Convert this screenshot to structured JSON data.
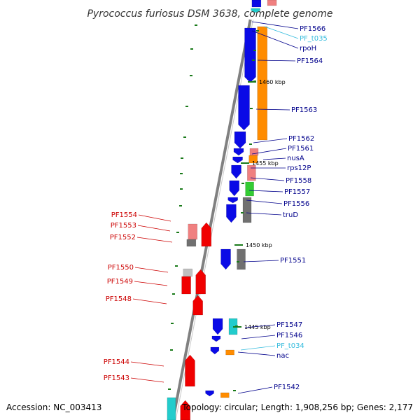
{
  "title": "Pyrococcus furiosus DSM 3638, complete genome",
  "footer": {
    "accession": "Accession: NC_003413",
    "summary": "Topology: circular; Length: 1,908,256 bp; Genes: 2,177"
  },
  "colors": {
    "blue": "#0a0ae6",
    "red": "#f00000",
    "orange": "#ff8c00",
    "pink": "#f08080",
    "gray": "#707070",
    "green": "#33cc33",
    "cyan": "#22cccc",
    "lightgray": "#c0c0c0",
    "tick": "#1a7a1a",
    "backbone": "#808080",
    "label_blue": "#00008b",
    "label_red": "#cc0000",
    "label_cyan": "#33bbdd"
  },
  "scale_ticks": [
    "1460 kbp",
    "1455 kbp",
    "1450 kbp",
    "1445 kbp"
  ],
  "right_labels": [
    {
      "text": "PF1566",
      "color": "label_blue"
    },
    {
      "text": "PF_t035",
      "color": "label_cyan"
    },
    {
      "text": "rpoH",
      "color": "label_blue"
    },
    {
      "text": "PF1564",
      "color": "label_blue"
    },
    {
      "text": "PF1563",
      "color": "label_blue"
    },
    {
      "text": "PF1562",
      "color": "label_blue"
    },
    {
      "text": "PF1561",
      "color": "label_blue"
    },
    {
      "text": "nusA",
      "color": "label_blue"
    },
    {
      "text": "rps12P",
      "color": "label_blue"
    },
    {
      "text": "PF1558",
      "color": "label_blue"
    },
    {
      "text": "PF1557",
      "color": "label_blue"
    },
    {
      "text": "PF1556",
      "color": "label_blue"
    },
    {
      "text": "truD",
      "color": "label_blue"
    },
    {
      "text": "PF1551",
      "color": "label_blue"
    },
    {
      "text": "PF1547",
      "color": "label_blue"
    },
    {
      "text": "PF1546",
      "color": "label_blue"
    },
    {
      "text": "PF_t034",
      "color": "label_cyan"
    },
    {
      "text": "nac",
      "color": "label_blue"
    },
    {
      "text": "PF1542",
      "color": "label_blue"
    }
  ],
  "left_labels": [
    {
      "text": "PF1554"
    },
    {
      "text": "PF1553"
    },
    {
      "text": "PF1552"
    },
    {
      "text": "PF1550"
    },
    {
      "text": "PF1549"
    },
    {
      "text": "PF1548"
    },
    {
      "text": "PF1544"
    },
    {
      "text": "PF1543"
    }
  ]
}
